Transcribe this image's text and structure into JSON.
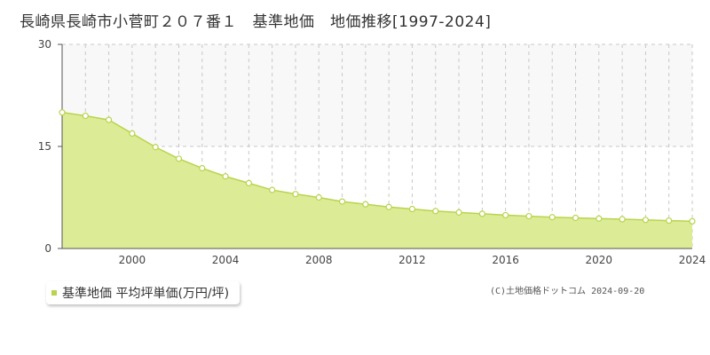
{
  "title": "長崎県長崎市小菅町２０７番１　基準地価　地価推移[1997-2024]",
  "legend_label": "基準地価 平均坪単価(万円/坪)",
  "copyright": "(C)土地価格ドットコム 2024-09-20",
  "colors": {
    "fill": "#dcec96",
    "line": "#b8d44c",
    "marker_fill": "#ffffff",
    "marker_stroke": "#b8d44c",
    "legend_marker": "#b8d44c",
    "grid": "#c8c8c8",
    "upper_band": "#f8f8f8"
  },
  "chart_data": {
    "type": "area",
    "title": "長崎県長崎市小菅町２０７番１　基準地価　地価推移[1997-2024]",
    "xlabel": "",
    "ylabel": "",
    "xlim": [
      1997,
      2024
    ],
    "ylim": [
      0,
      30
    ],
    "x_ticks": [
      2000,
      2004,
      2008,
      2012,
      2016,
      2020,
      2024
    ],
    "y_ticks": [
      0,
      15,
      30
    ],
    "grid": true,
    "legend_position": "bottom-left",
    "series": [
      {
        "name": "基準地価 平均坪単価(万円/坪)",
        "x": [
          1997,
          1998,
          1999,
          2000,
          2001,
          2002,
          2003,
          2004,
          2005,
          2006,
          2007,
          2008,
          2009,
          2010,
          2011,
          2012,
          2013,
          2014,
          2015,
          2016,
          2017,
          2018,
          2019,
          2020,
          2021,
          2022,
          2023,
          2024
        ],
        "values": [
          20.0,
          19.5,
          18.9,
          16.9,
          14.9,
          13.2,
          11.8,
          10.6,
          9.6,
          8.6,
          8.0,
          7.5,
          6.9,
          6.5,
          6.1,
          5.8,
          5.5,
          5.3,
          5.1,
          4.9,
          4.75,
          4.6,
          4.5,
          4.4,
          4.3,
          4.2,
          4.1,
          4.0
        ]
      }
    ]
  }
}
